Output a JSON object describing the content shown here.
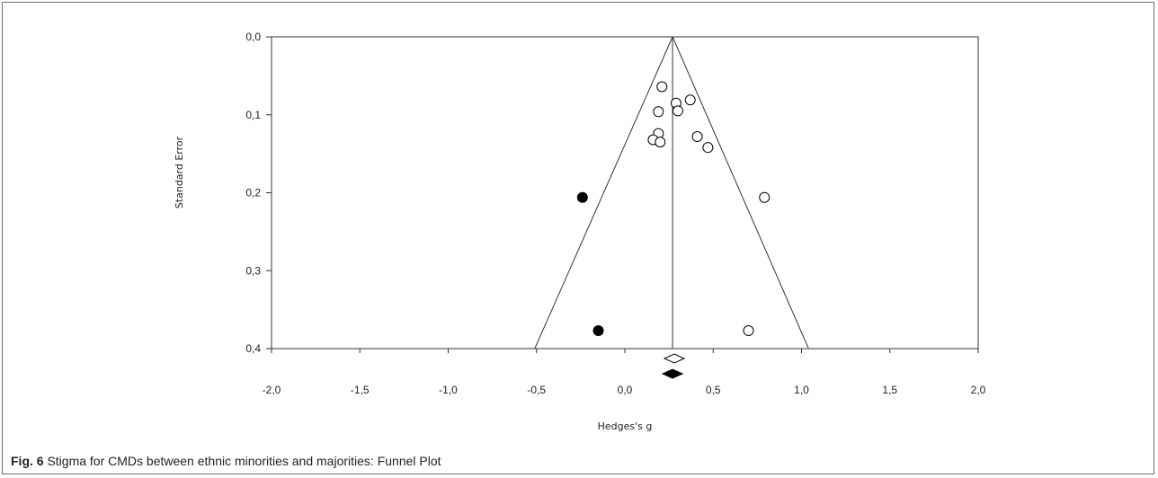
{
  "caption": {
    "label": "Fig. 6",
    "text": " Stigma for CMDs between ethnic minorities and majorities: Funnel Plot"
  },
  "chart_data": {
    "type": "scatter",
    "title": "",
    "xlabel": "Hedges's g",
    "ylabel": "Standard Error",
    "xlim": [
      -2.0,
      2.0
    ],
    "ylim": [
      0.0,
      0.4
    ],
    "y_inverted": true,
    "x_ticks": [
      "-2,0",
      "-1,5",
      "-1,0",
      "-0,5",
      "0,0",
      "0,5",
      "1,0",
      "1,5",
      "2,0"
    ],
    "y_ticks": [
      "0,0",
      "0,1",
      "0,2",
      "0,3",
      "0,4"
    ],
    "pooled_effect": 0.27,
    "funnel_bottom_left": -0.51,
    "funnel_bottom_right": 1.04,
    "observed_studies": [
      {
        "x": 0.21,
        "y": 0.064
      },
      {
        "x": 0.37,
        "y": 0.081
      },
      {
        "x": 0.29,
        "y": 0.085
      },
      {
        "x": 0.19,
        "y": 0.096
      },
      {
        "x": 0.3,
        "y": 0.095
      },
      {
        "x": 0.19,
        "y": 0.124
      },
      {
        "x": 0.16,
        "y": 0.132
      },
      {
        "x": 0.2,
        "y": 0.135
      },
      {
        "x": 0.41,
        "y": 0.128
      },
      {
        "x": 0.47,
        "y": 0.142
      },
      {
        "x": 0.79,
        "y": 0.206
      },
      {
        "x": 0.7,
        "y": 0.377
      }
    ],
    "imputed_studies": [
      {
        "x": -0.24,
        "y": 0.206
      },
      {
        "x": -0.15,
        "y": 0.377
      }
    ],
    "observed_summary": 0.28,
    "adjusted_summary": 0.27,
    "colors": {
      "observed": "#ffffff",
      "imputed": "#000000",
      "line": "#333333"
    }
  }
}
